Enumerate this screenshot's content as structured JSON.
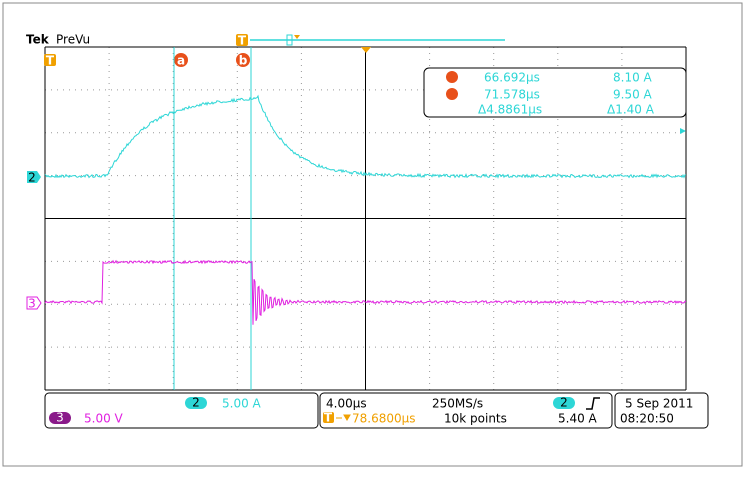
{
  "header": {
    "brand": "Tek",
    "mode": "PreVu"
  },
  "markers": {
    "trigger": "T",
    "cursor_a": "a",
    "cursor_b": "b",
    "channel_2": "2",
    "channel_3": "3"
  },
  "readout": {
    "a_time": "66.692µs",
    "a_value": "8.10 A",
    "b_time": "71.578µs",
    "b_value": "9.50 A",
    "delta_time": "Δ4.8861µs",
    "delta_value": "Δ1.40 A"
  },
  "channels": {
    "ch2_label": "2",
    "ch2_scale": "5.00 A",
    "ch3_label": "3",
    "ch3_scale": "5.00 V"
  },
  "timebase": {
    "scale": "4.00µs",
    "rate": "250MS/s",
    "position": "78.6800µs",
    "record": "10k points",
    "trigger_source": "2",
    "trigger_level": "5.40 A"
  },
  "datetime": {
    "date": "5 Sep 2011",
    "time": "08:20:50"
  }
}
